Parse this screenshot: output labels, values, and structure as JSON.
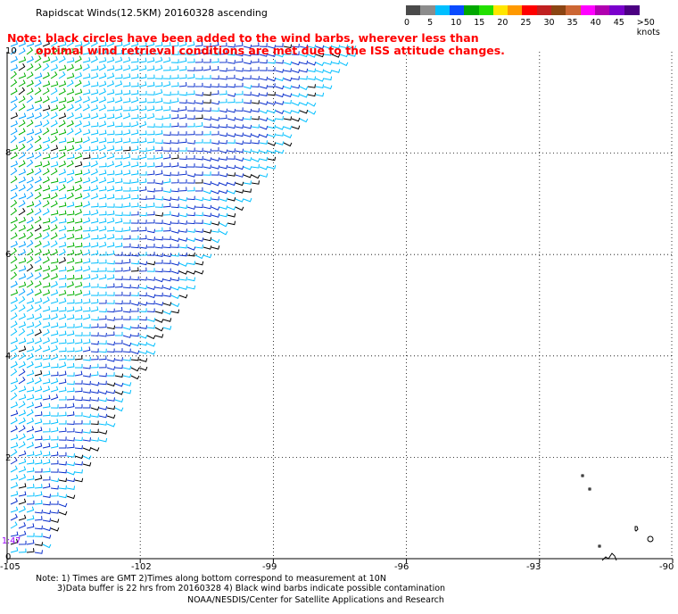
{
  "title": "Rapidscat Winds(12.5KM) 20160328 ascending",
  "note": {
    "line1": "Note: black circles have been added to the wind barbs, wherever less than",
    "line2": "optimal wind retrieval conditions are met due to the ISS attitude changes."
  },
  "legend": {
    "ticks": [
      "0",
      "5",
      "10",
      "15",
      "20",
      "25",
      "30",
      "35",
      "40",
      "45",
      ">50 knots"
    ],
    "colors": [
      "#4a4a4a",
      "#8c8c8c",
      "#00bfff",
      "#0a4bff",
      "#00a800",
      "#22e000",
      "#ffe600",
      "#ff9900",
      "#ff0000",
      "#c02020",
      "#8b4513",
      "#cc6633",
      "#ff00ff",
      "#b000b0",
      "#7a00cc",
      "#4b0082"
    ]
  },
  "axes": {
    "x_ticks": [
      "-105",
      "-102",
      "-99",
      "-96",
      "-93",
      "-90"
    ],
    "y_ticks": [
      "10",
      "8",
      "6",
      "4",
      "2",
      "0"
    ]
  },
  "start_label": "1:47",
  "footer": {
    "line1": "Note: 1) Times are GMT 2)Times along bottom correspond to measurement at 10N",
    "line2": "3)Data buffer is 22 hrs from 20160328 4) Black wind barbs indicate possible contamination",
    "line3": "NOAA/NESDIS/Center for Satellite Applications and Research"
  },
  "colors": {
    "barb_light": "#00bfff",
    "barb_dark": "#0a2fcc",
    "barb_green": "#00b000",
    "barb_contam": "#000000",
    "note_red": "#ff0000",
    "grid": "#000000"
  }
}
